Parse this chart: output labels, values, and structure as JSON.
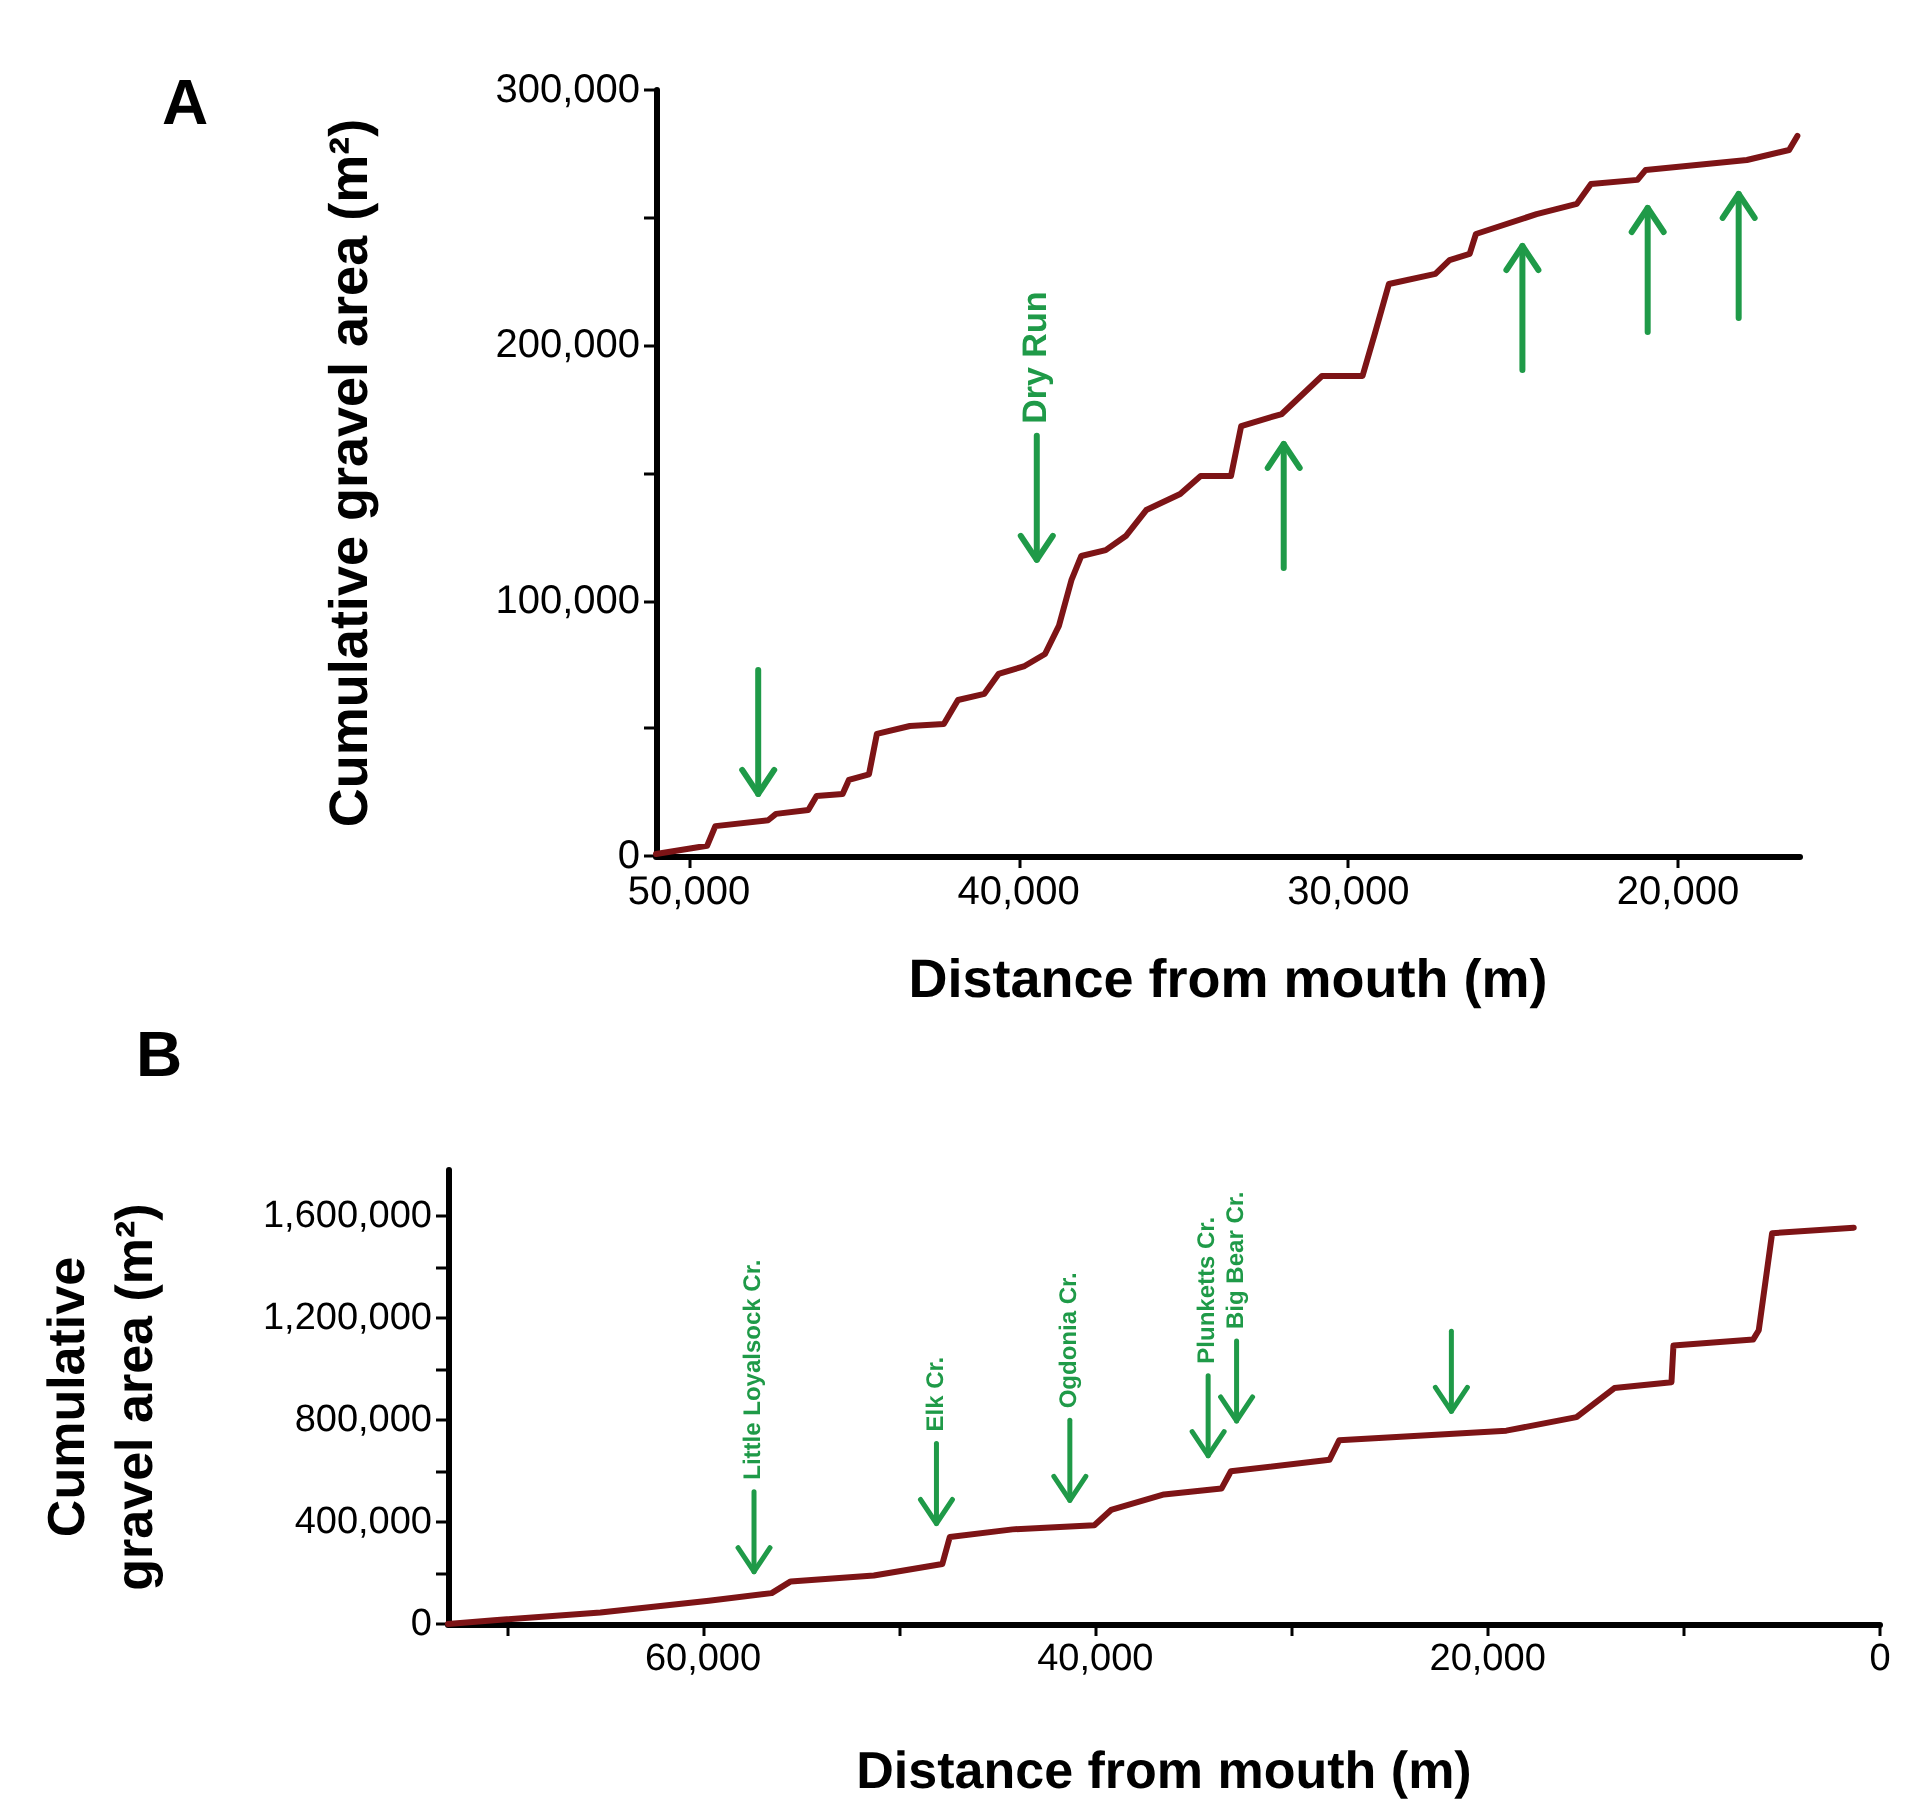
{
  "chart_data": [
    {
      "type": "line",
      "title": "A",
      "xlabel": "Distance from mouth (m)",
      "ylabel": "Cumulative gravel area (m²)",
      "color": "#7d1416",
      "x": [
        51000,
        49450,
        49200,
        47600,
        47360,
        46380,
        46130,
        45340,
        45150,
        44540,
        44300,
        43300,
        42270,
        41840,
        41040,
        40610,
        39820,
        39200,
        38780,
        38400,
        38100,
        37360,
        36750,
        36130,
        35100,
        34480,
        33560,
        33250,
        32020,
        30800,
        29570,
        29200,
        28770,
        27360,
        26930,
        26320,
        26130,
        24290,
        23070,
        22640,
        21230,
        20980,
        19750,
        17910,
        16630,
        16380
      ],
      "values": [
        800,
        4000,
        11700,
        14000,
        16500,
        18000,
        23500,
        24300,
        29800,
        32000,
        47800,
        50900,
        51700,
        61100,
        63500,
        71300,
        74400,
        79100,
        90100,
        108000,
        117500,
        119800,
        125300,
        135500,
        141800,
        148800,
        148800,
        168400,
        173100,
        188000,
        188000,
        204400,
        224000,
        228000,
        233400,
        235800,
        243600,
        251400,
        255400,
        263200,
        264800,
        268700,
        270200,
        272600,
        276500,
        282000
      ],
      "xlim": [
        51000,
        16300
      ],
      "ylim": [
        0,
        300000
      ],
      "xticks": [
        {
          "value": 50000,
          "label": "50,000"
        },
        {
          "value": 40000,
          "label": "40,000"
        },
        {
          "value": 30000,
          "label": "30,000"
        },
        {
          "value": 20000,
          "label": "20,000"
        }
      ],
      "yticks": [
        0,
        {
          "value": 50000,
          "label": null
        },
        {
          "value": 100000,
          "label": "100,000"
        },
        {
          "value": 150000,
          "label": null
        },
        {
          "value": 200000,
          "label": "200,000"
        },
        {
          "value": 250000,
          "label": null
        },
        {
          "value": 300000,
          "label": "300,000"
        }
      ],
      "annotations": [
        "Dry Run"
      ]
    },
    {
      "type": "line",
      "title": "B",
      "xlabel": "Distance from mouth (m)",
      "ylabel": "Cumulative gravel area (m²)",
      "color": "#7d1416",
      "x": [
        73000,
        70650,
        65230,
        59700,
        56500,
        55530,
        51290,
        47800,
        47420,
        44220,
        40050,
        39200,
        36500,
        33570,
        33090,
        28060,
        27570,
        19050,
        15470,
        13540,
        10630,
        10530,
        6470,
        6180,
        5500,
        1340
      ],
      "values": [
        0,
        15000,
        45000,
        91000,
        121000,
        167000,
        190000,
        235000,
        341000,
        371000,
        387000,
        447000,
        508000,
        531000,
        599000,
        644000,
        720000,
        758000,
        811000,
        925000,
        948000,
        1092000,
        1115000,
        1152000,
        1532000,
        1554000
      ],
      "xlim": [
        73000,
        0
      ],
      "ylim": [
        0,
        1780000
      ],
      "xticks": [
        {
          "value": 70000,
          "label": null
        },
        {
          "value": 60000,
          "label": "60,000"
        },
        {
          "value": 50000,
          "label": null
        },
        {
          "value": 40000,
          "label": "40,000"
        },
        {
          "value": 30000,
          "label": null
        },
        {
          "value": 20000,
          "label": "20,000"
        },
        {
          "value": 10000,
          "label": null
        },
        0
      ],
      "yticks": [
        0,
        {
          "value": 200000,
          "label": null
        },
        {
          "value": 400000,
          "label": "400,000"
        },
        {
          "value": 600000,
          "label": null
        },
        {
          "value": 800000,
          "label": "800,000"
        },
        {
          "value": 1000000,
          "label": null
        },
        {
          "value": 1200000,
          "label": "1,200,000"
        },
        {
          "value": 1400000,
          "label": null
        },
        {
          "value": 1600000,
          "label": "1,600,000"
        }
      ],
      "annotations": [
        "Little Loyalsock Cr.",
        "Elk Cr.",
        "Ogdonia Cr.",
        "Plunketts Cr.",
        "Big Bear Cr."
      ]
    }
  ]
}
